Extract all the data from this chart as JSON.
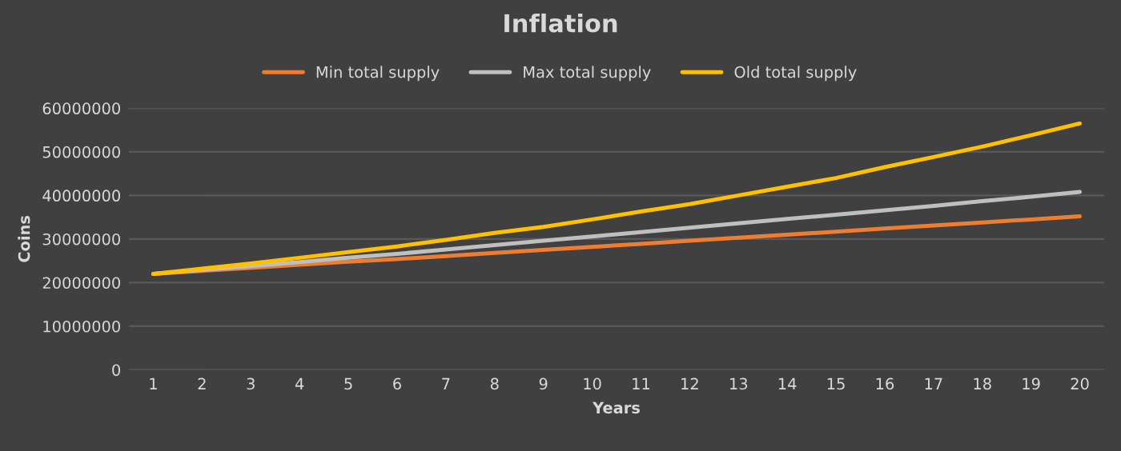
{
  "chart_data": {
    "type": "line",
    "title": "Inflation",
    "xlabel": "Years",
    "ylabel": "Coins",
    "categories": [
      "1",
      "2",
      "3",
      "4",
      "5",
      "6",
      "7",
      "8",
      "9",
      "10",
      "11",
      "12",
      "13",
      "14",
      "15",
      "16",
      "17",
      "18",
      "19",
      "20"
    ],
    "series": [
      {
        "name": "Min total supply",
        "color": "#ed7d31",
        "values": [
          22000000,
          22700000,
          23400000,
          24100000,
          24800000,
          25400000,
          26100000,
          26800000,
          27500000,
          28200000,
          28900000,
          29600000,
          30300000,
          31000000,
          31700000,
          32400000,
          33100000,
          33800000,
          34500000,
          35200000
        ]
      },
      {
        "name": "Max total supply",
        "color": "#bfbfbf",
        "values": [
          22000000,
          22900000,
          23800000,
          24700000,
          25700000,
          26600000,
          27600000,
          28600000,
          29600000,
          30600000,
          31600000,
          32600000,
          33600000,
          34600000,
          35600000,
          36600000,
          37600000,
          38700000,
          39700000,
          40800000
        ]
      },
      {
        "name": "Old total supply",
        "color": "#ffc000",
        "values": [
          22000000,
          23200000,
          24400000,
          25700000,
          27000000,
          28300000,
          29800000,
          31400000,
          32800000,
          34500000,
          36300000,
          38000000,
          40000000,
          42000000,
          44000000,
          46500000,
          48800000,
          51200000,
          53800000,
          56500000
        ]
      }
    ],
    "ylim": [
      0,
      60000000
    ],
    "yticks": [
      0,
      10000000,
      20000000,
      30000000,
      40000000,
      50000000,
      60000000
    ],
    "grid": "y",
    "legend": "top",
    "marker": "none",
    "line_style": "solid"
  }
}
